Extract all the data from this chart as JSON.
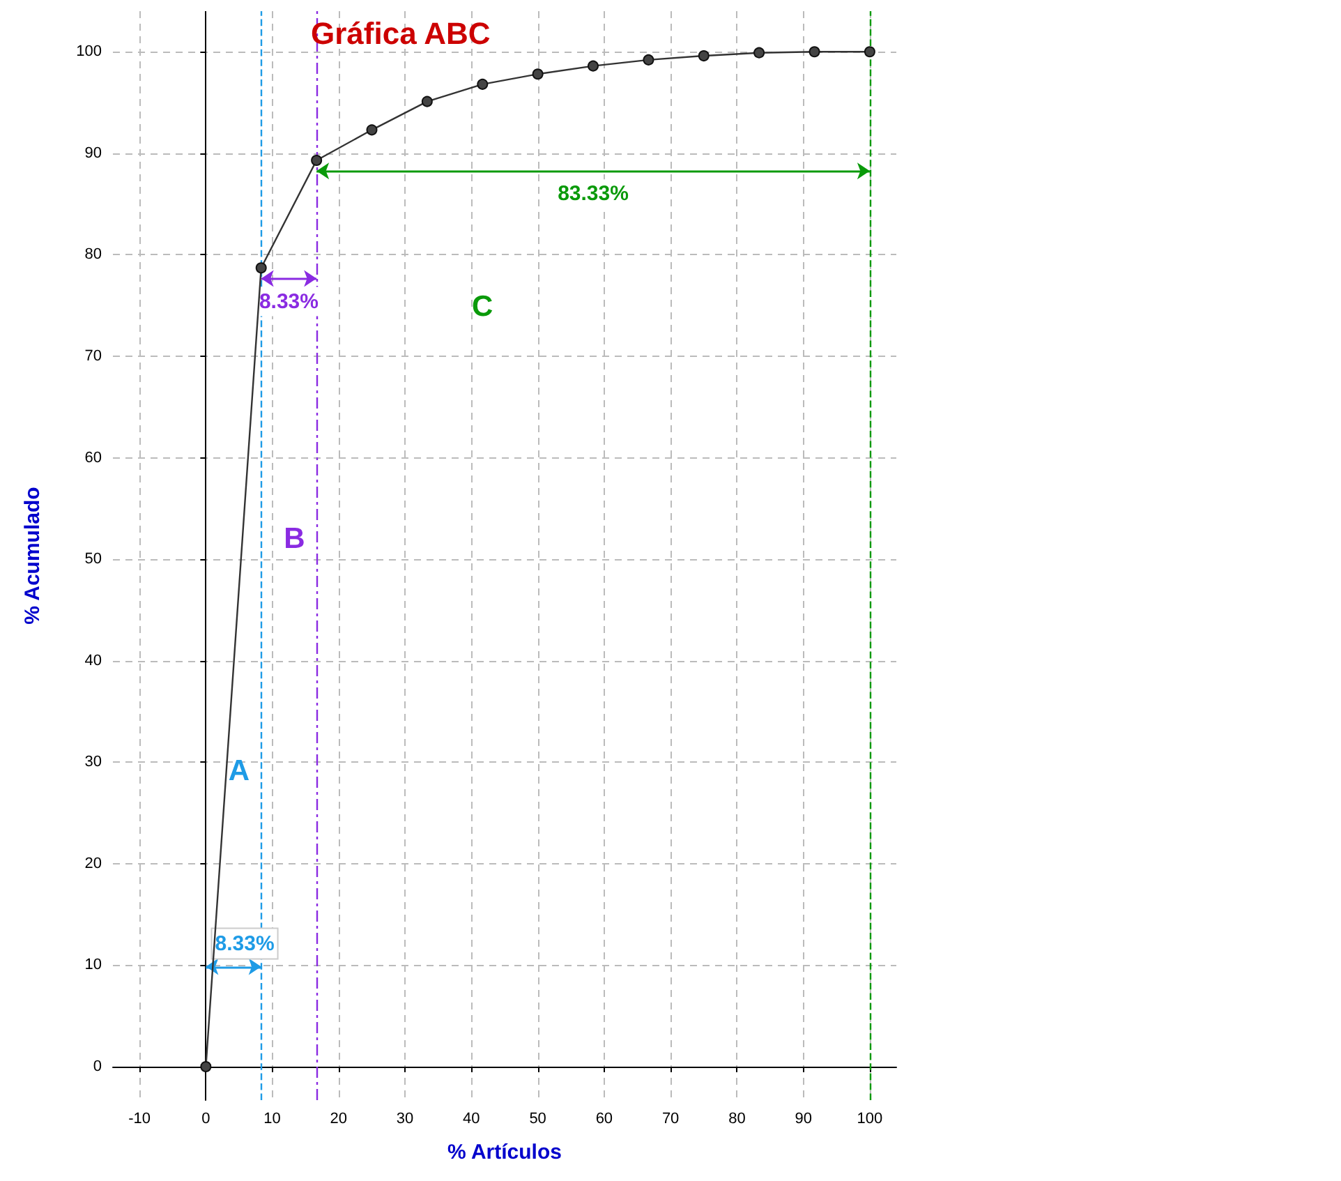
{
  "chart_data": {
    "type": "line",
    "title": "Gráfica ABC",
    "xlabel": "% Artículos",
    "ylabel": "% Acumulado",
    "x": [
      0,
      8.33,
      16.67,
      25,
      33.33,
      41.67,
      50,
      58.33,
      66.67,
      75,
      83.33,
      91.67,
      100
    ],
    "series": [
      {
        "color": "#333333",
        "values": [
          0,
          78.7,
          89.3,
          92.3,
          95.1,
          96.8,
          97.8,
          98.6,
          99.2,
          99.6,
          99.9,
          100,
          100
        ]
      }
    ],
    "marker": "circle",
    "grid": true,
    "xlim": [
      -14,
      104
    ],
    "ylim": [
      -3.3,
      104
    ],
    "xticks": [
      -10,
      0,
      10,
      20,
      30,
      40,
      50,
      60,
      70,
      80,
      90,
      100
    ],
    "yticks": [
      0,
      10,
      20,
      30,
      40,
      50,
      60,
      70,
      80,
      90,
      100
    ],
    "ref_lines": [
      {
        "axis": "x",
        "value": 8.33,
        "color": "#1e9be6",
        "line_style": "dashed"
      },
      {
        "axis": "x",
        "value": 16.67,
        "color": "#8a2be2",
        "line_style": "dashdot"
      },
      {
        "axis": "x",
        "value": 100,
        "color": "#0a9a0a",
        "line_style": "dashed"
      }
    ],
    "annotations": [
      "8.33%",
      "8.33%",
      "83.33%",
      "A",
      "B",
      "C"
    ]
  }
}
